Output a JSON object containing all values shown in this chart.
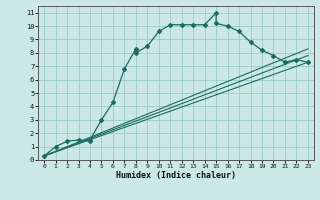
{
  "xlabel": "Humidex (Indice chaleur)",
  "bg_color": "#cce8e4",
  "grid_color": "#99cccc",
  "line_color": "#1a6b60",
  "xlim": [
    -0.5,
    23.5
  ],
  "ylim": [
    0,
    11.5
  ],
  "xticks": [
    0,
    1,
    2,
    3,
    4,
    5,
    6,
    7,
    8,
    9,
    10,
    11,
    12,
    13,
    14,
    15,
    16,
    17,
    18,
    19,
    20,
    21,
    22,
    23
  ],
  "yticks": [
    0,
    1,
    2,
    3,
    4,
    5,
    6,
    7,
    8,
    9,
    10,
    11
  ],
  "main_x": [
    0,
    1,
    2,
    3,
    4,
    4,
    5,
    6,
    7,
    8,
    8,
    9,
    10,
    11,
    12,
    13,
    14,
    15,
    15,
    16,
    17,
    18,
    19,
    20,
    21,
    22,
    23
  ],
  "main_y": [
    0.3,
    1.0,
    1.4,
    1.5,
    1.4,
    1.5,
    3.0,
    4.3,
    6.8,
    8.3,
    8.0,
    8.5,
    9.6,
    10.1,
    10.1,
    10.1,
    10.1,
    11.0,
    10.2,
    10.0,
    9.6,
    8.8,
    8.2,
    7.8,
    7.3,
    7.5,
    7.3
  ],
  "line1_x": [
    0,
    23
  ],
  "line1_y": [
    0.3,
    7.3
  ],
  "line2_x": [
    0,
    23
  ],
  "line2_y": [
    0.3,
    7.8
  ],
  "line3_x": [
    0,
    23
  ],
  "line3_y": [
    0.3,
    8.3
  ]
}
